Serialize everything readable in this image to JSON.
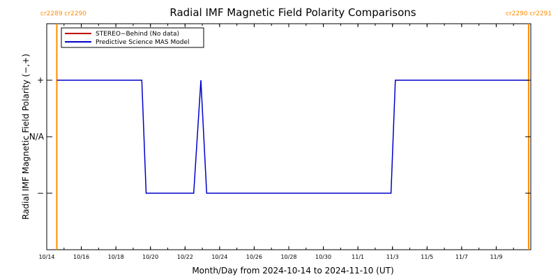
{
  "chart_data": {
    "type": "line",
    "title": "Radial IMF Magnetic Field Polarity Comparisons",
    "xlabel": "Month/Day from 2024-10-14 to 2024-11-10 (UT)",
    "ylabel": "Radial IMF Magnetic Field Polarity (−,+)",
    "x_range": [
      "2024-10-14",
      "2024-11-11"
    ],
    "y_levels": [
      {
        "label": "+",
        "value": 1
      },
      {
        "label": "N/A",
        "value": 0
      },
      {
        "label": "−",
        "value": -1
      }
    ],
    "ylim": [
      -2,
      2
    ],
    "x_ticks": [
      {
        "date": "2024-10-14",
        "label": "10/14"
      },
      {
        "date": "2024-10-16",
        "label": "10/16"
      },
      {
        "date": "2024-10-18",
        "label": "10/18"
      },
      {
        "date": "2024-10-20",
        "label": "10/20"
      },
      {
        "date": "2024-10-22",
        "label": "10/22"
      },
      {
        "date": "2024-10-24",
        "label": "10/24"
      },
      {
        "date": "2024-10-26",
        "label": "10/26"
      },
      {
        "date": "2024-10-28",
        "label": "10/28"
      },
      {
        "date": "2024-10-30",
        "label": "10/30"
      },
      {
        "date": "2024-11-01",
        "label": "11/1"
      },
      {
        "date": "2024-11-03",
        "label": "11/3"
      },
      {
        "date": "2024-11-05",
        "label": "11/5"
      },
      {
        "date": "2024-11-07",
        "label": "11/7"
      },
      {
        "date": "2024-11-09",
        "label": "11/9"
      }
    ],
    "carrington_markers": [
      {
        "date": "2024-10-14 14:00",
        "label": "cr2289 cr2290",
        "label_side": "top-left",
        "color": "#ff8c00"
      },
      {
        "date": "2024-11-10 21:00",
        "label": "cr2290 cr2291",
        "label_side": "top-right",
        "color": "#ff8c00"
      }
    ],
    "series": [
      {
        "name": "STEREO−Behind (No data)",
        "color": "#c00000",
        "points": []
      },
      {
        "name": "Predictive Science MAS Model",
        "color": "#0000cc",
        "points": [
          {
            "x": "2024-10-14 14:00",
            "y": 1
          },
          {
            "x": "2024-10-19 12:00",
            "y": 1
          },
          {
            "x": "2024-10-19 18:00",
            "y": -1
          },
          {
            "x": "2024-10-22 12:00",
            "y": -1
          },
          {
            "x": "2024-10-22 22:00",
            "y": 1
          },
          {
            "x": "2024-10-23 06:00",
            "y": -1
          },
          {
            "x": "2024-11-02 22:00",
            "y": -1
          },
          {
            "x": "2024-11-03 04:00",
            "y": 1
          },
          {
            "x": "2024-11-10 21:00",
            "y": 1
          }
        ]
      }
    ],
    "legend_position": "top-left",
    "grid": false
  }
}
